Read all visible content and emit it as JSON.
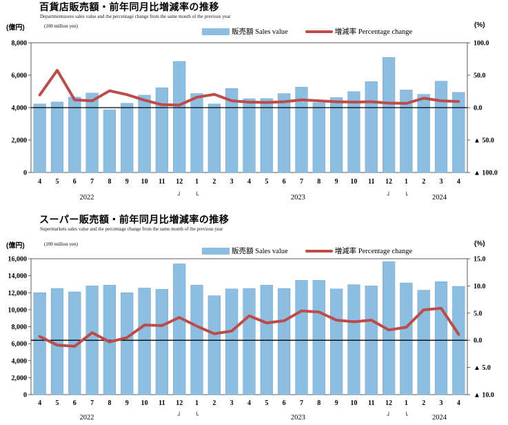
{
  "colors": {
    "bar": "#8CBEE2",
    "bar_border": "#6FA3CC",
    "line": "#BE4B48",
    "axis": "#595959",
    "zero_line": "#000000",
    "text": "#000000"
  },
  "chart_data": [
    {
      "type": "bar+line",
      "title": "百貨店販売額・前年同月比増減率の推移",
      "subtitle": "Departmentstores sales value and the percentage change from the same month of the previous year",
      "unit_left_jp": "(億円)",
      "unit_left_en": "(100 million yen)",
      "unit_right": "(%)",
      "legend": [
        {
          "label": "販売額 Sales value",
          "type": "bar"
        },
        {
          "label": "増減率 Percentage change",
          "type": "line"
        }
      ],
      "categories": [
        "4",
        "5",
        "6",
        "7",
        "8",
        "9",
        "10",
        "11",
        "12",
        "1",
        "2",
        "3",
        "4",
        "5",
        "6",
        "7",
        "8",
        "9",
        "10",
        "11",
        "12",
        "1",
        "2",
        "3",
        "4"
      ],
      "year_labels": [
        {
          "label": "2022",
          "index": 2.7
        },
        {
          "label": "2023",
          "index": 14.8
        },
        {
          "label": "2024",
          "index": 22.9
        }
      ],
      "year_break_marks": [
        {
          "glyph": "┘",
          "index": 8
        },
        {
          "glyph": "└",
          "index": 9
        },
        {
          "glyph": "┘",
          "index": 20
        },
        {
          "glyph": "└",
          "index": 21
        }
      ],
      "left_axis": {
        "min": 0,
        "max": 8000,
        "tick_values": [
          8000,
          6000,
          4000,
          2000,
          0
        ],
        "tick_labels": [
          "8,000",
          "6,000",
          "4,000",
          "2,000",
          "0"
        ]
      },
      "right_axis": {
        "min": -100,
        "max": 100,
        "tick_values": [
          100,
          50,
          0,
          -50,
          -100
        ],
        "tick_labels": [
          "100.0",
          "50.0",
          "0.0",
          "▲ 50.0",
          "▲ 100.0"
        ],
        "zero_line_at": 0
      },
      "grid": false,
      "legend_position": "top",
      "series": [
        {
          "name": "販売額 Sales value",
          "type": "bar",
          "axis": "left",
          "values": [
            4230,
            4350,
            4650,
            4900,
            3870,
            4270,
            4770,
            5230,
            6850,
            4870,
            4230,
            5180,
            4550,
            4560,
            4870,
            5270,
            4300,
            4620,
            4990,
            5600,
            7100,
            5090,
            4820,
            5630,
            4940
          ]
        },
        {
          "name": "増減率 Percentage change",
          "type": "line",
          "axis": "right",
          "values": [
            19.5,
            57.5,
            12.0,
            10.5,
            26.0,
            20.0,
            11.5,
            4.5,
            4.0,
            16.0,
            20.5,
            10.5,
            8.5,
            8.0,
            9.0,
            12.0,
            10.5,
            9.0,
            8.5,
            9.0,
            7.0,
            6.5,
            14.5,
            10.5,
            9.5
          ]
        }
      ]
    },
    {
      "type": "bar+line",
      "title": "スーパー販売額・前年同月比増減率の推移",
      "subtitle": "Supermarkets sales value and the percentage change from the same month of the previous year",
      "unit_left_jp": "(億円)",
      "unit_left_en": "(100 million yen)",
      "unit_right": "(%)",
      "legend": [
        {
          "label": "販売額 Sales value",
          "type": "bar"
        },
        {
          "label": "増減率 Percentage change",
          "type": "line"
        }
      ],
      "categories": [
        "4",
        "5",
        "6",
        "7",
        "8",
        "9",
        "10",
        "11",
        "12",
        "1",
        "2",
        "3",
        "4",
        "5",
        "6",
        "7",
        "8",
        "9",
        "10",
        "11",
        "12",
        "1",
        "2",
        "3",
        "4"
      ],
      "year_labels": [
        {
          "label": "2022",
          "index": 2.7
        },
        {
          "label": "2023",
          "index": 14.8
        },
        {
          "label": "2024",
          "index": 22.9
        }
      ],
      "year_break_marks": [
        {
          "glyph": "┘",
          "index": 8
        },
        {
          "glyph": "└",
          "index": 9
        },
        {
          "glyph": "┘",
          "index": 20
        },
        {
          "glyph": "└",
          "index": 21
        }
      ],
      "left_axis": {
        "min": 0,
        "max": 16000,
        "tick_values": [
          16000,
          14000,
          12000,
          10000,
          8000,
          6000,
          4000,
          2000,
          0
        ],
        "tick_labels": [
          "16,000",
          "14,000",
          "12,000",
          "10,000",
          "8,000",
          "6,000",
          "4,000",
          "2,000",
          "0"
        ]
      },
      "right_axis": {
        "min": -10,
        "max": 15,
        "tick_values": [
          15,
          10,
          5,
          0,
          -5,
          -10
        ],
        "tick_labels": [
          "15.0",
          "10.0",
          "5.0",
          "0.0",
          "▲ 5.0",
          "▲ 10.0"
        ],
        "zero_line_at": 0
      },
      "grid": false,
      "legend_position": "top",
      "series": [
        {
          "name": "販売額 Sales value",
          "type": "bar",
          "axis": "left",
          "values": [
            12000,
            12500,
            12100,
            12800,
            12900,
            12000,
            12550,
            12400,
            15400,
            12900,
            11650,
            12450,
            12500,
            12900,
            12500,
            13450,
            13450,
            12450,
            12950,
            12800,
            15650,
            13150,
            12300,
            13300,
            12750
          ]
        },
        {
          "name": "増減率 Percentage change",
          "type": "line",
          "axis": "right",
          "values": [
            0.7,
            -0.9,
            -1.1,
            1.4,
            -0.3,
            0.5,
            2.8,
            2.7,
            4.2,
            2.6,
            1.2,
            1.7,
            4.5,
            3.2,
            3.6,
            5.4,
            5.2,
            3.7,
            3.4,
            3.7,
            1.9,
            2.4,
            5.6,
            5.9,
            1.1
          ]
        }
      ]
    }
  ]
}
